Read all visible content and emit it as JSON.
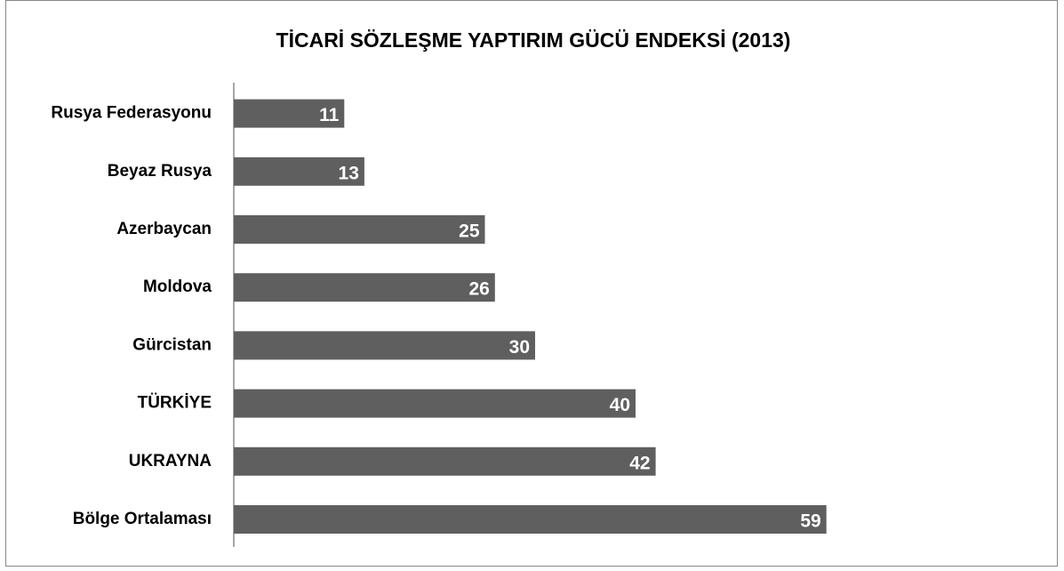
{
  "chart_data": {
    "type": "bar",
    "orientation": "horizontal",
    "title": "TİCARİ SÖZLEŞME YAPTIRIM GÜCÜ  ENDEKSİ (2013)",
    "categories": [
      "Rusya Federasyonu",
      "Beyaz Rusya",
      "Azerbaycan",
      "Moldova",
      "Gürcistan",
      "TÜRKİYE",
      "UKRAYNA",
      "Bölge Ortalaması"
    ],
    "values": [
      11,
      13,
      25,
      26,
      30,
      40,
      42,
      59
    ],
    "color": "#5f5f5f"
  }
}
